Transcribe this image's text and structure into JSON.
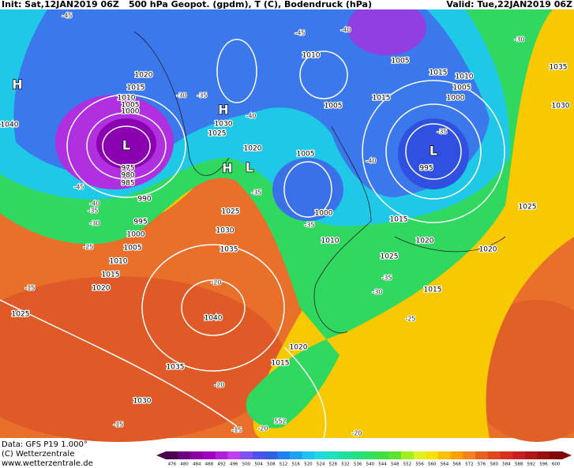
{
  "header": {
    "init": "Init: Sat,12JAN2019 06Z",
    "title": "500 hPa Geopot. (gpdm), T (C), Bodendruck (hPa)",
    "valid": "Valid: Tue,22JAN2019 06Z"
  },
  "footer": {
    "data": "Data: GFS P19 1.000°",
    "copyright": "(C) Wetterzentrale",
    "url": "www.wetterzentrale.de"
  },
  "legend": {
    "ticks": [
      476,
      480,
      484,
      488,
      492,
      496,
      500,
      504,
      508,
      512,
      516,
      520,
      524,
      528,
      532,
      536,
      540,
      544,
      548,
      552,
      556,
      560,
      564,
      568,
      572,
      576,
      580,
      584,
      588,
      592,
      596,
      600
    ]
  },
  "map": {
    "pressure_centers": [
      "H",
      "H",
      "H",
      "L",
      "L",
      "L"
    ],
    "isobar_labels": [
      1020,
      1015,
      1010,
      1005,
      1000,
      1040,
      1030,
      1025,
      1020,
      975,
      980,
      985,
      990,
      995,
      1000,
      1005,
      1010,
      1015,
      1020,
      1025,
      1025,
      1030,
      1035,
      1040,
      1035,
      1030,
      1010,
      1005,
      1005,
      1015,
      1015,
      1010,
      1005,
      1000,
      995,
      1005,
      1000,
      1010,
      1015,
      1020,
      1025,
      1015,
      1020,
      1025,
      1030,
      1035,
      1020,
      1015
    ],
    "temperature_labels": [
      -45,
      -45,
      -40,
      -30,
      -30,
      -35,
      -40,
      -35,
      -40,
      -35,
      -45,
      -40,
      -35,
      -30,
      -25,
      -15,
      -20,
      -35,
      -35,
      -30,
      -25,
      -20,
      -15,
      -15,
      -20,
      -20
    ],
    "geopotential_labels": [
      552
    ]
  }
}
